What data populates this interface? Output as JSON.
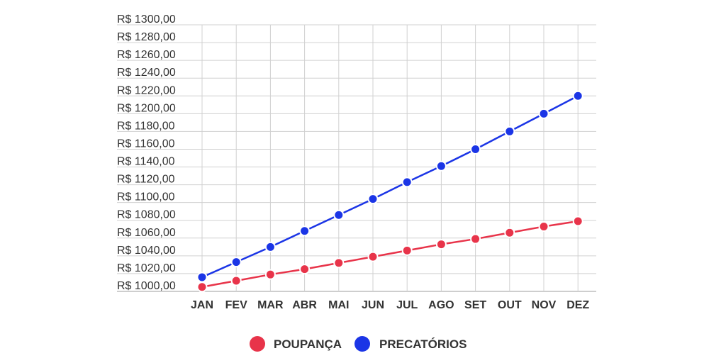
{
  "chart_data": {
    "type": "line",
    "categories": [
      "JAN",
      "FEV",
      "MAR",
      "ABR",
      "MAI",
      "JUN",
      "JUL",
      "AGO",
      "SET",
      "OUT",
      "NOV",
      "DEZ"
    ],
    "y_tick_labels": [
      "R$ 1000,00",
      "R$ 1020,00",
      "R$ 1040,00",
      "R$ 1060,00",
      "R$ 1080,00",
      "R$ 1100,00",
      "R$ 1120,00",
      "R$ 1140,00",
      "R$ 1160,00",
      "R$ 1180,00",
      "R$ 1200,00",
      "R$ 1220,00",
      "R$ 1240,00",
      "R$ 1260,00",
      "R$ 1280,00",
      "R$ 1300,00"
    ],
    "ylim": [
      1000,
      1300
    ],
    "y_step": 20,
    "grid": true,
    "legend_position": "bottom-center",
    "series": [
      {
        "name": "POUPANÇA",
        "color": "#e8344a",
        "values": [
          1005,
          1012,
          1019,
          1025,
          1032,
          1039,
          1046,
          1053,
          1059,
          1066,
          1073,
          1079
        ]
      },
      {
        "name": "PRECATÓRIOS",
        "color": "#1b35e6",
        "values": [
          1016,
          1033,
          1050,
          1068,
          1086,
          1104,
          1123,
          1141,
          1160,
          1180,
          1200,
          1220
        ]
      }
    ]
  }
}
